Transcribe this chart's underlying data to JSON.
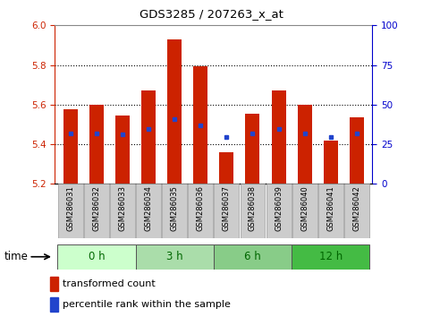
{
  "title": "GDS3285 / 207263_x_at",
  "samples": [
    "GSM286031",
    "GSM286032",
    "GSM286033",
    "GSM286034",
    "GSM286035",
    "GSM286036",
    "GSM286037",
    "GSM286038",
    "GSM286039",
    "GSM286040",
    "GSM286041",
    "GSM286042"
  ],
  "bar_tops": [
    5.575,
    5.6,
    5.545,
    5.67,
    5.93,
    5.795,
    5.36,
    5.555,
    5.67,
    5.6,
    5.42,
    5.535
  ],
  "bar_base": 5.2,
  "blue_y": [
    5.455,
    5.455,
    5.45,
    5.475,
    5.525,
    5.495,
    5.435,
    5.455,
    5.475,
    5.455,
    5.435,
    5.455
  ],
  "bar_color": "#cc2200",
  "blue_color": "#2244cc",
  "ylim_left": [
    5.2,
    6.0
  ],
  "ylim_right": [
    0,
    100
  ],
  "yticks_left": [
    5.2,
    5.4,
    5.6,
    5.8,
    6.0
  ],
  "yticks_right": [
    0,
    25,
    50,
    75,
    100
  ],
  "group_names": [
    "0 h",
    "3 h",
    "6 h",
    "12 h"
  ],
  "group_colors": {
    "0 h": "#ccffcc",
    "3 h": "#aaddaa",
    "6 h": "#88cc88",
    "12 h": "#44bb44"
  },
  "group_label_color": "#006600",
  "time_label": "time",
  "legend_bar_label": "transformed count",
  "legend_dot_label": "percentile rank within the sample",
  "bar_width": 0.55,
  "tick_color_left": "#cc2200",
  "tick_color_right": "#0000cc",
  "sample_bg": "#cccccc"
}
